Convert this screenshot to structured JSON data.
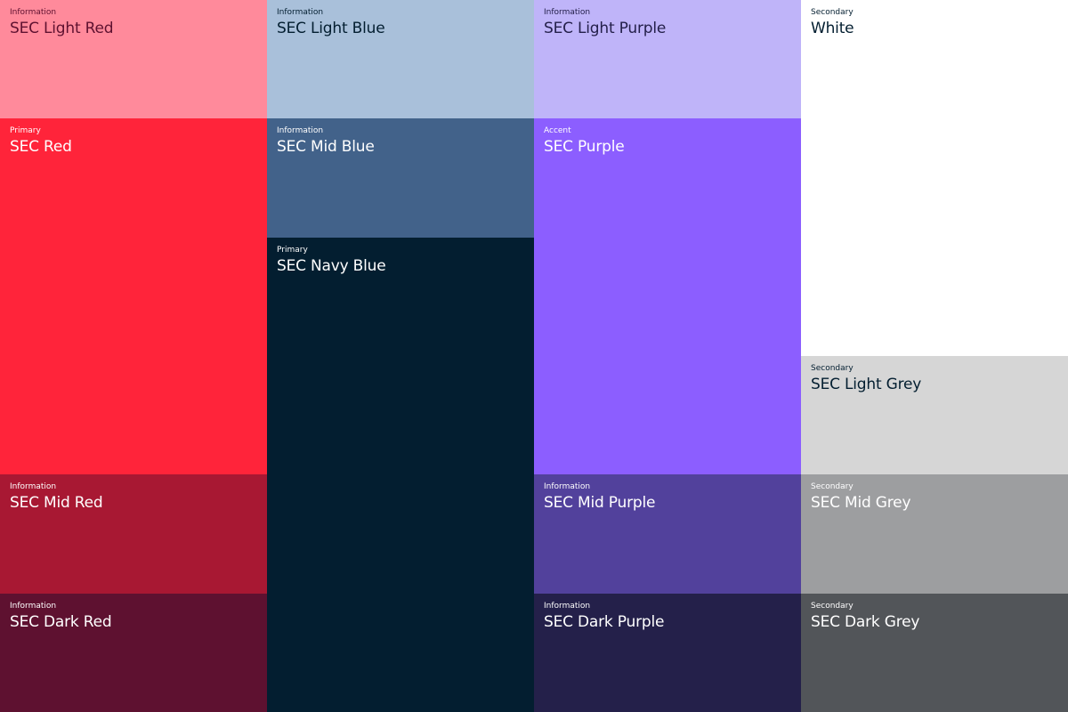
{
  "swatches": [
    {
      "category": "Information",
      "name": "SEC Light Red",
      "bg": "#FF8A9B",
      "fg": "#5E1130"
    },
    {
      "category": "Primary",
      "name": "SEC Red",
      "bg": "#FF243A",
      "fg": "#FFFFFF"
    },
    {
      "category": "Information",
      "name": "SEC Mid Red",
      "bg": "#A81833",
      "fg": "#FFFFFF"
    },
    {
      "category": "Information",
      "name": "SEC Dark Red",
      "bg": "#5E1130",
      "fg": "#FFFFFF"
    },
    {
      "category": "Information",
      "name": "SEC Light Blue",
      "bg": "#A9C0DA",
      "fg": "#031E30"
    },
    {
      "category": "Information",
      "name": "SEC Mid Blue",
      "bg": "#42628A",
      "fg": "#FFFFFF"
    },
    {
      "category": "Primary",
      "name": "SEC Navy Blue",
      "bg": "#031E30",
      "fg": "#FFFFFF"
    },
    {
      "category": "Information",
      "name": "SEC Light Purple",
      "bg": "#BFB4F9",
      "fg": "#24204A"
    },
    {
      "category": "Accent",
      "name": "SEC Purple",
      "bg": "#8C5EFF",
      "fg": "#FFFFFF"
    },
    {
      "category": "Information",
      "name": "SEC Mid Purple",
      "bg": "#52419C",
      "fg": "#FFFFFF"
    },
    {
      "category": "Information",
      "name": "SEC Dark Purple",
      "bg": "#24204A",
      "fg": "#FFFFFF"
    },
    {
      "category": "Secondary",
      "name": "White",
      "bg": "#FFFFFF",
      "fg": "#031E30"
    },
    {
      "category": "Secondary",
      "name": "SEC Light Grey",
      "bg": "#D6D6D6",
      "fg": "#031E30"
    },
    {
      "category": "Secondary",
      "name": "SEC Mid Grey",
      "bg": "#9D9EA0",
      "fg": "#FFFFFF"
    },
    {
      "category": "Secondary",
      "name": "SEC Dark Grey",
      "bg": "#525559",
      "fg": "#FFFFFF"
    }
  ]
}
